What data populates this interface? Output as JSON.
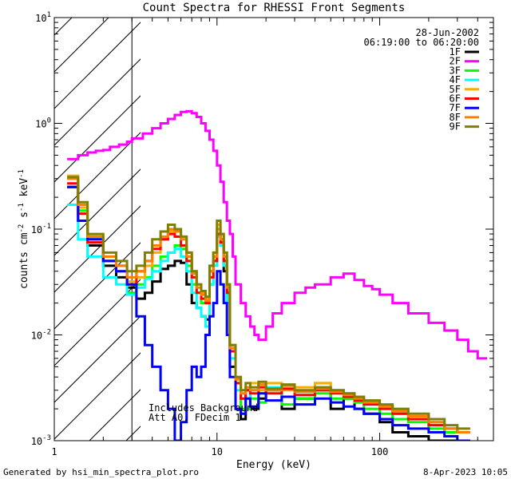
{
  "chart_data": {
    "type": "line",
    "title": "Count Spectra for RHESSI Front Segments",
    "xlabel": "Energy (keV)",
    "ylabel_base": "counts cm",
    "ylabel_exp1": "-2",
    "ylabel_mid": " s",
    "ylabel_exp2": "-1",
    "ylabel_end": " keV",
    "ylabel_exp3": "-1",
    "xscale": "log",
    "yscale": "log",
    "xlim": [
      1,
      500
    ],
    "ylim": [
      0.001,
      10
    ],
    "xticks": [
      {
        "value": 1,
        "base": "1",
        "exp": ""
      },
      {
        "value": 10,
        "base": "10",
        "exp": ""
      },
      {
        "value": 100,
        "base": "100",
        "exp": ""
      }
    ],
    "yticks": [
      {
        "value": 0.001,
        "base": "10",
        "exp": "-3"
      },
      {
        "value": 0.01,
        "base": "10",
        "exp": "-2"
      },
      {
        "value": 0.1,
        "base": "10",
        "exp": "-1"
      },
      {
        "value": 1,
        "base": "10",
        "exp": "0"
      },
      {
        "value": 10,
        "base": "10",
        "exp": "1"
      }
    ],
    "hatched_region": [
      1,
      3
    ],
    "date": "28-Jun-2002",
    "time_range": "06:19:00 to 06:20:00",
    "annotation_line1": "Includes Background",
    "annotation_line2": "Att A0, FDecim 1",
    "footer_left": "Generated by hsi_min_spectra_plot.pro",
    "footer_right": "8-Apr-2023 10:05",
    "series": [
      {
        "name": "1F",
        "color": "#000000",
        "x": [
          1.2,
          1.4,
          1.6,
          2.0,
          2.4,
          2.8,
          3.2,
          3.6,
          4.0,
          4.5,
          5.0,
          5.5,
          6.0,
          6.5,
          7.0,
          7.5,
          8.0,
          8.5,
          9.0,
          9.5,
          10,
          10.5,
          11,
          11.5,
          12,
          13,
          14,
          15,
          16,
          18,
          20,
          25,
          30,
          40,
          50,
          60,
          70,
          80,
          100,
          120,
          150,
          200,
          250,
          300
        ],
        "y": [
          0.25,
          0.12,
          0.07,
          0.045,
          0.035,
          0.028,
          0.022,
          0.025,
          0.032,
          0.042,
          0.045,
          0.05,
          0.048,
          0.03,
          0.02,
          0.018,
          0.015,
          0.014,
          0.04,
          0.05,
          0.09,
          0.07,
          0.04,
          0.02,
          0.005,
          0.002,
          0.0016,
          0.003,
          0.002,
          0.0025,
          0.003,
          0.002,
          0.0025,
          0.003,
          0.002,
          0.0025,
          0.002,
          0.0018,
          0.0015,
          0.0012,
          0.0011,
          0.001,
          0.001,
          0.001
        ]
      },
      {
        "name": "2F",
        "color": "#ff00ff",
        "x": [
          1.2,
          1.4,
          1.6,
          1.8,
          2.0,
          2.2,
          2.5,
          2.8,
          3.0,
          3.5,
          4.0,
          4.5,
          5.0,
          5.5,
          6.0,
          6.5,
          7.0,
          7.5,
          8.0,
          8.5,
          9.0,
          9.5,
          10,
          10.5,
          11,
          11.5,
          12,
          12.5,
          13,
          14,
          15,
          16,
          17,
          18,
          20,
          22,
          25,
          30,
          35,
          40,
          50,
          60,
          70,
          80,
          90,
          100,
          120,
          150,
          200,
          250,
          300,
          350,
          400
        ],
        "y": [
          0.46,
          0.5,
          0.53,
          0.55,
          0.56,
          0.6,
          0.63,
          0.67,
          0.72,
          0.8,
          0.9,
          1.0,
          1.1,
          1.2,
          1.28,
          1.3,
          1.25,
          1.15,
          1.0,
          0.85,
          0.7,
          0.55,
          0.4,
          0.28,
          0.18,
          0.12,
          0.09,
          0.055,
          0.03,
          0.02,
          0.015,
          0.012,
          0.01,
          0.009,
          0.012,
          0.016,
          0.02,
          0.025,
          0.028,
          0.03,
          0.035,
          0.038,
          0.033,
          0.029,
          0.027,
          0.024,
          0.02,
          0.016,
          0.013,
          0.011,
          0.009,
          0.007,
          0.006
        ]
      },
      {
        "name": "3F",
        "color": "#00ff00",
        "x": [
          1.2,
          1.4,
          1.6,
          2.0,
          2.4,
          2.8,
          3.2,
          3.6,
          4.0,
          4.5,
          5.0,
          5.5,
          6.0,
          6.5,
          7.0,
          7.5,
          8.0,
          8.5,
          9.0,
          9.5,
          10,
          10.5,
          11,
          11.5,
          12,
          13,
          14,
          15,
          16,
          18,
          20,
          25,
          30,
          40,
          50,
          60,
          70,
          80,
          100,
          120,
          150,
          200,
          250,
          300
        ],
        "y": [
          0.3,
          0.15,
          0.08,
          0.05,
          0.04,
          0.025,
          0.03,
          0.035,
          0.045,
          0.055,
          0.06,
          0.07,
          0.065,
          0.045,
          0.03,
          0.025,
          0.02,
          0.02,
          0.03,
          0.05,
          0.1,
          0.08,
          0.05,
          0.03,
          0.008,
          0.0035,
          0.002,
          0.002,
          0.0025,
          0.0023,
          0.003,
          0.0022,
          0.0025,
          0.0028,
          0.0025,
          0.0025,
          0.0023,
          0.002,
          0.0018,
          0.0016,
          0.0015,
          0.0013,
          0.0012,
          0.0012
        ]
      },
      {
        "name": "4F",
        "color": "#00ffff",
        "x": [
          1.2,
          1.4,
          1.6,
          2.0,
          2.4,
          2.8,
          3.2,
          3.6,
          4.0,
          4.5,
          5.0,
          5.5,
          6.0,
          6.5,
          7.0,
          7.5,
          8.0,
          8.5,
          9.0,
          9.5,
          10,
          10.5,
          11,
          11.5,
          12,
          13,
          14,
          15,
          16,
          18,
          20,
          25,
          30,
          40,
          50,
          60,
          70,
          80,
          100,
          120,
          150,
          200,
          250,
          300
        ],
        "y": [
          0.17,
          0.08,
          0.055,
          0.035,
          0.03,
          0.024,
          0.028,
          0.034,
          0.04,
          0.05,
          0.06,
          0.065,
          0.055,
          0.04,
          0.025,
          0.018,
          0.015,
          0.012,
          0.03,
          0.045,
          0.085,
          0.07,
          0.045,
          0.02,
          0.006,
          0.003,
          0.0025,
          0.0025,
          0.003,
          0.0028,
          0.0032,
          0.0026,
          0.0029,
          0.0035,
          0.003,
          0.0028,
          0.0025,
          0.0022,
          0.002,
          0.0018,
          0.0016,
          0.0014,
          0.0013,
          0.0012
        ]
      },
      {
        "name": "5F",
        "color": "#ffaa00",
        "x": [
          1.2,
          1.4,
          1.6,
          2.0,
          2.4,
          2.8,
          3.2,
          3.6,
          4.0,
          4.5,
          5.0,
          5.5,
          6.0,
          6.5,
          7.0,
          7.5,
          8.0,
          8.5,
          9.0,
          9.5,
          10,
          10.5,
          11,
          11.5,
          12,
          13,
          14,
          15,
          16,
          18,
          20,
          25,
          30,
          40,
          50,
          60,
          70,
          80,
          100,
          120,
          150,
          200,
          250,
          300
        ],
        "y": [
          0.32,
          0.16,
          0.085,
          0.055,
          0.04,
          0.032,
          0.035,
          0.045,
          0.06,
          0.08,
          0.095,
          0.1,
          0.085,
          0.06,
          0.04,
          0.03,
          0.025,
          0.022,
          0.04,
          0.06,
          0.11,
          0.09,
          0.06,
          0.03,
          0.008,
          0.004,
          0.003,
          0.003,
          0.0035,
          0.003,
          0.0035,
          0.003,
          0.0032,
          0.0035,
          0.003,
          0.0028,
          0.0026,
          0.0024,
          0.0021,
          0.0019,
          0.0017,
          0.0015,
          0.0013,
          0.0012
        ]
      },
      {
        "name": "6F",
        "color": "#ff0000",
        "x": [
          1.2,
          1.4,
          1.6,
          2.0,
          2.4,
          2.8,
          3.2,
          3.6,
          4.0,
          4.5,
          5.0,
          5.5,
          6.0,
          6.5,
          7.0,
          7.5,
          8.0,
          8.5,
          9.0,
          9.5,
          10,
          10.5,
          11,
          11.5,
          12,
          13,
          14,
          15,
          16,
          18,
          20,
          25,
          30,
          40,
          50,
          60,
          70,
          80,
          100,
          120,
          150,
          200,
          250,
          300
        ],
        "y": [
          0.27,
          0.14,
          0.075,
          0.05,
          0.045,
          0.03,
          0.04,
          0.05,
          0.065,
          0.08,
          0.09,
          0.085,
          0.07,
          0.05,
          0.035,
          0.025,
          0.022,
          0.02,
          0.035,
          0.05,
          0.09,
          0.075,
          0.05,
          0.025,
          0.007,
          0.0035,
          0.0025,
          0.003,
          0.0028,
          0.0032,
          0.0028,
          0.0031,
          0.0027,
          0.003,
          0.0028,
          0.0026,
          0.0024,
          0.0022,
          0.002,
          0.0018,
          0.0016,
          0.0014,
          0.0013,
          0.0012
        ]
      },
      {
        "name": "7F",
        "color": "#0000ff",
        "x": [
          1.2,
          1.4,
          1.6,
          2.0,
          2.4,
          2.8,
          3.2,
          3.6,
          4.0,
          4.5,
          5.0,
          5.5,
          6.0,
          6.5,
          7.0,
          7.5,
          8.0,
          8.5,
          9.0,
          9.5,
          10,
          10.5,
          11,
          11.5,
          12,
          13,
          14,
          15,
          16,
          18,
          20,
          25,
          30,
          40,
          50,
          60,
          70,
          80,
          100,
          120,
          150,
          200,
          250,
          300
        ],
        "y": [
          0.25,
          0.12,
          0.08,
          0.05,
          0.04,
          0.03,
          0.015,
          0.008,
          0.005,
          0.003,
          0.002,
          0.001,
          0.0015,
          0.003,
          0.005,
          0.004,
          0.005,
          0.01,
          0.015,
          0.02,
          0.04,
          0.03,
          0.02,
          0.01,
          0.004,
          0.002,
          0.0018,
          0.0025,
          0.0021,
          0.0028,
          0.0024,
          0.0026,
          0.0022,
          0.0025,
          0.0023,
          0.0021,
          0.002,
          0.0018,
          0.0016,
          0.0014,
          0.0013,
          0.0012,
          0.0011,
          0.001
        ]
      },
      {
        "name": "8F",
        "color": "#ff7f00",
        "x": [
          1.2,
          1.4,
          1.6,
          2.0,
          2.4,
          2.8,
          3.2,
          3.6,
          4.0,
          4.5,
          5.0,
          5.5,
          6.0,
          6.5,
          7.0,
          7.5,
          8.0,
          8.5,
          9.0,
          9.5,
          10,
          10.5,
          11,
          11.5,
          12,
          13,
          14,
          15,
          16,
          18,
          20,
          25,
          30,
          40,
          50,
          60,
          70,
          80,
          100,
          120,
          150,
          200,
          250,
          300
        ],
        "y": [
          0.3,
          0.17,
          0.085,
          0.055,
          0.045,
          0.035,
          0.04,
          0.05,
          0.07,
          0.085,
          0.1,
          0.095,
          0.08,
          0.055,
          0.038,
          0.028,
          0.024,
          0.021,
          0.04,
          0.055,
          0.1,
          0.08,
          0.055,
          0.028,
          0.0075,
          0.0038,
          0.0028,
          0.0032,
          0.003,
          0.0034,
          0.003,
          0.0033,
          0.0029,
          0.0031,
          0.0029,
          0.0027,
          0.0025,
          0.0023,
          0.0021,
          0.0019,
          0.0017,
          0.0015,
          0.0013,
          0.0012
        ]
      },
      {
        "name": "9F",
        "color": "#808000",
        "x": [
          1.2,
          1.4,
          1.6,
          2.0,
          2.4,
          2.8,
          3.2,
          3.6,
          4.0,
          4.5,
          5.0,
          5.5,
          6.0,
          6.5,
          7.0,
          7.5,
          8.0,
          8.5,
          9.0,
          9.5,
          10,
          10.5,
          11,
          11.5,
          12,
          13,
          14,
          15,
          16,
          18,
          20,
          25,
          30,
          40,
          50,
          60,
          70,
          80,
          100,
          120,
          150,
          200,
          250,
          300
        ],
        "y": [
          0.31,
          0.18,
          0.09,
          0.06,
          0.05,
          0.04,
          0.045,
          0.06,
          0.08,
          0.095,
          0.11,
          0.1,
          0.085,
          0.06,
          0.04,
          0.03,
          0.026,
          0.023,
          0.045,
          0.06,
          0.12,
          0.09,
          0.06,
          0.03,
          0.008,
          0.004,
          0.003,
          0.0035,
          0.0032,
          0.0036,
          0.0031,
          0.0034,
          0.003,
          0.0032,
          0.003,
          0.0028,
          0.0026,
          0.0024,
          0.0022,
          0.002,
          0.0018,
          0.0016,
          0.0014,
          0.0013
        ]
      }
    ]
  }
}
